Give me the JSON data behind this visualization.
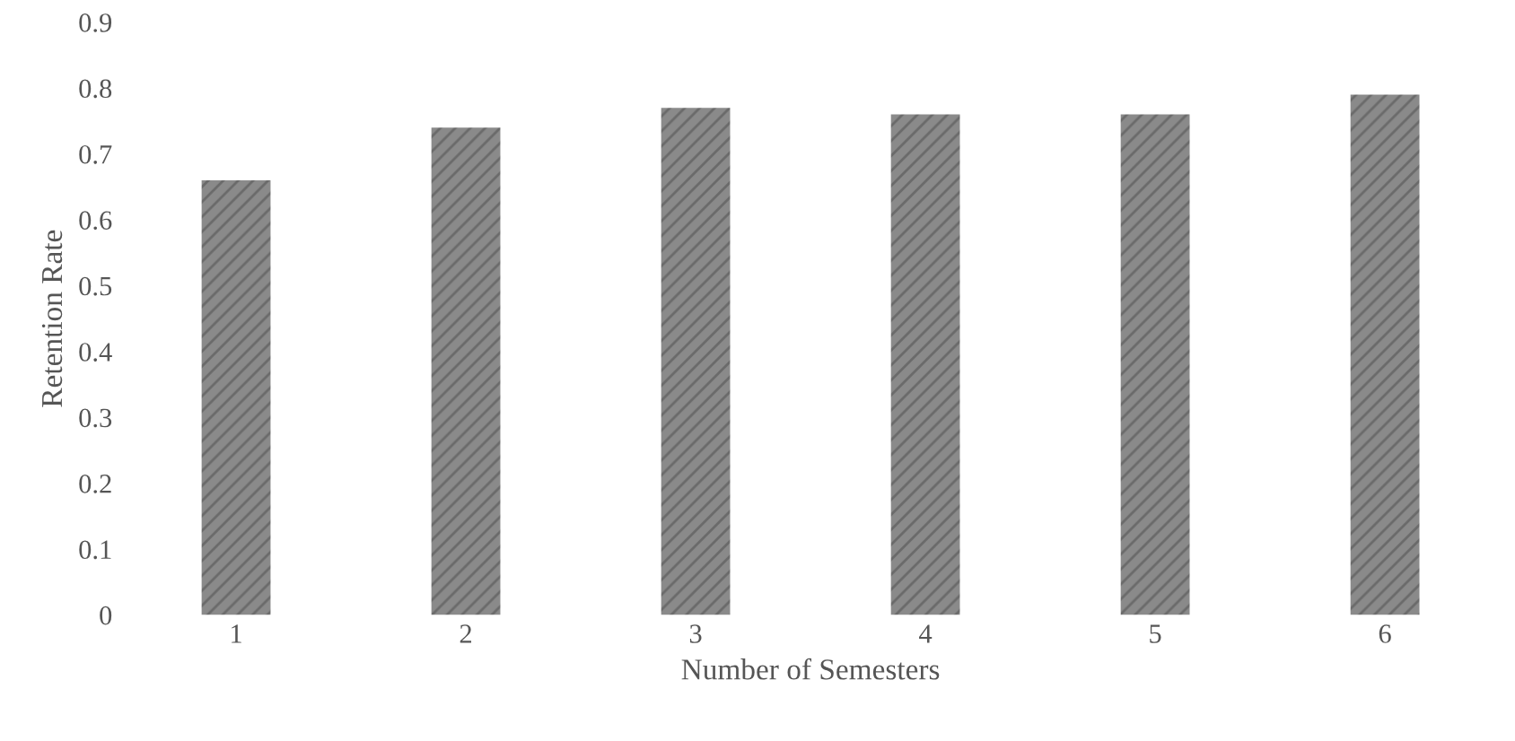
{
  "chart_data": {
    "type": "bar",
    "xlabel": "Number of Semesters",
    "ylabel": "Retention Rate",
    "categories": [
      "1",
      "2",
      "3",
      "4",
      "5",
      "6"
    ],
    "values": [
      0.66,
      0.74,
      0.77,
      0.76,
      0.76,
      0.79
    ],
    "color": "#8a8a8a",
    "ylim": [
      0,
      0.9
    ],
    "yticks": [
      {
        "value": 0,
        "label": "0"
      },
      0.1,
      0.2,
      0.3,
      0.4,
      0.5,
      0.6,
      0.7,
      0.8,
      0.9
    ],
    "grid": false,
    "legend": false
  }
}
